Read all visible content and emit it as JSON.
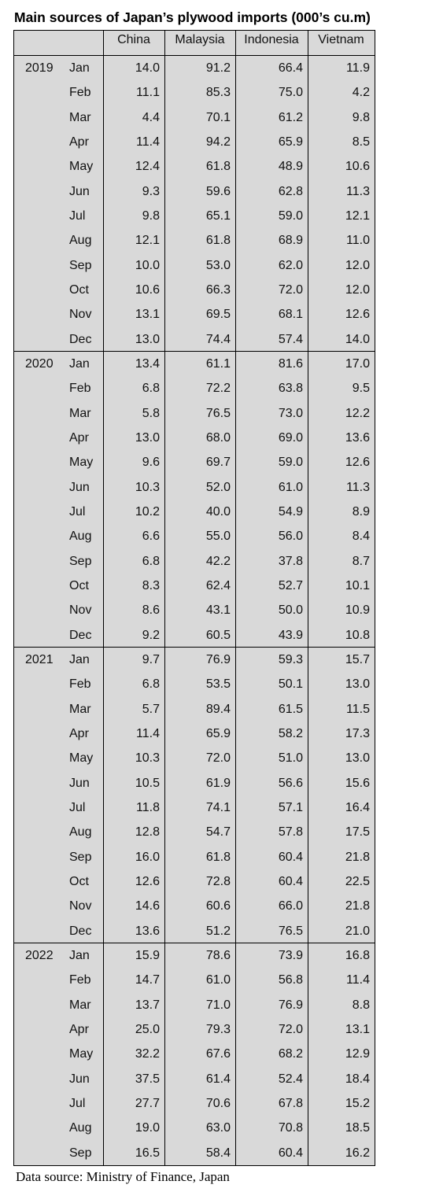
{
  "title": "Main sources of Japan’s plywood imports (000’s cu.m)",
  "table": {
    "columns": [
      "China",
      "Malaysia",
      "Indonesia",
      "Vietnam"
    ],
    "groups": [
      {
        "year": "2019",
        "rows": [
          {
            "month": "Jan",
            "values": [
              "14.0",
              "91.2",
              "66.4",
              "11.9"
            ]
          },
          {
            "month": "Feb",
            "values": [
              "11.1",
              "85.3",
              "75.0",
              "4.2"
            ]
          },
          {
            "month": "Mar",
            "values": [
              "4.4",
              "70.1",
              "61.2",
              "9.8"
            ]
          },
          {
            "month": "Apr",
            "values": [
              "11.4",
              "94.2",
              "65.9",
              "8.5"
            ]
          },
          {
            "month": "May",
            "values": [
              "12.4",
              "61.8",
              "48.9",
              "10.6"
            ]
          },
          {
            "month": "Jun",
            "values": [
              "9.3",
              "59.6",
              "62.8",
              "11.3"
            ]
          },
          {
            "month": "Jul",
            "values": [
              "9.8",
              "65.1",
              "59.0",
              "12.1"
            ]
          },
          {
            "month": "Aug",
            "values": [
              "12.1",
              "61.8",
              "68.9",
              "11.0"
            ]
          },
          {
            "month": "Sep",
            "values": [
              "10.0",
              "53.0",
              "62.0",
              "12.0"
            ]
          },
          {
            "month": "Oct",
            "values": [
              "10.6",
              "66.3",
              "72.0",
              "12.0"
            ]
          },
          {
            "month": "Nov",
            "values": [
              "13.1",
              "69.5",
              "68.1",
              "12.6"
            ]
          },
          {
            "month": "Dec",
            "values": [
              "13.0",
              "74.4",
              "57.4",
              "14.0"
            ]
          }
        ]
      },
      {
        "year": "2020",
        "rows": [
          {
            "month": "Jan",
            "values": [
              "13.4",
              "61.1",
              "81.6",
              "17.0"
            ]
          },
          {
            "month": "Feb",
            "values": [
              "6.8",
              "72.2",
              "63.8",
              "9.5"
            ]
          },
          {
            "month": "Mar",
            "values": [
              "5.8",
              "76.5",
              "73.0",
              "12.2"
            ]
          },
          {
            "month": "Apr",
            "values": [
              "13.0",
              "68.0",
              "69.0",
              "13.6"
            ]
          },
          {
            "month": "May",
            "values": [
              "9.6",
              "69.7",
              "59.0",
              "12.6"
            ]
          },
          {
            "month": "Jun",
            "values": [
              "10.3",
              "52.0",
              "61.0",
              "11.3"
            ]
          },
          {
            "month": "Jul",
            "values": [
              "10.2",
              "40.0",
              "54.9",
              "8.9"
            ]
          },
          {
            "month": "Aug",
            "values": [
              "6.6",
              "55.0",
              "56.0",
              "8.4"
            ]
          },
          {
            "month": "Sep",
            "values": [
              "6.8",
              "42.2",
              "37.8",
              "8.7"
            ]
          },
          {
            "month": "Oct",
            "values": [
              "8.3",
              "62.4",
              "52.7",
              "10.1"
            ]
          },
          {
            "month": "Nov",
            "values": [
              "8.6",
              "43.1",
              "50.0",
              "10.9"
            ]
          },
          {
            "month": "Dec",
            "values": [
              "9.2",
              "60.5",
              "43.9",
              "10.8"
            ]
          }
        ]
      },
      {
        "year": "2021",
        "rows": [
          {
            "month": "Jan",
            "values": [
              "9.7",
              "76.9",
              "59.3",
              "15.7"
            ]
          },
          {
            "month": "Feb",
            "values": [
              "6.8",
              "53.5",
              "50.1",
              "13.0"
            ]
          },
          {
            "month": "Mar",
            "values": [
              "5.7",
              "89.4",
              "61.5",
              "11.5"
            ]
          },
          {
            "month": "Apr",
            "values": [
              "11.4",
              "65.9",
              "58.2",
              "17.3"
            ]
          },
          {
            "month": "May",
            "values": [
              "10.3",
              "72.0",
              "51.0",
              "13.0"
            ]
          },
          {
            "month": "Jun",
            "values": [
              "10.5",
              "61.9",
              "56.6",
              "15.6"
            ]
          },
          {
            "month": "Jul",
            "values": [
              "11.8",
              "74.1",
              "57.1",
              "16.4"
            ]
          },
          {
            "month": "Aug",
            "values": [
              "12.8",
              "54.7",
              "57.8",
              "17.5"
            ]
          },
          {
            "month": "Sep",
            "values": [
              "16.0",
              "61.8",
              "60.4",
              "21.8"
            ]
          },
          {
            "month": "Oct",
            "values": [
              "12.6",
              "72.8",
              "60.4",
              "22.5"
            ]
          },
          {
            "month": "Nov",
            "values": [
              "14.6",
              "60.6",
              "66.0",
              "21.8"
            ]
          },
          {
            "month": "Dec",
            "values": [
              "13.6",
              "51.2",
              "76.5",
              "21.0"
            ]
          }
        ]
      },
      {
        "year": "2022",
        "rows": [
          {
            "month": "Jan",
            "values": [
              "15.9",
              "78.6",
              "73.9",
              "16.8"
            ]
          },
          {
            "month": "Feb",
            "values": [
              "14.7",
              "61.0",
              "56.8",
              "11.4"
            ]
          },
          {
            "month": "Mar",
            "values": [
              "13.7",
              "71.0",
              "76.9",
              "8.8"
            ]
          },
          {
            "month": "Apr",
            "values": [
              "25.0",
              "79.3",
              "72.0",
              "13.1"
            ]
          },
          {
            "month": "May",
            "values": [
              "32.2",
              "67.6",
              "68.2",
              "12.9"
            ]
          },
          {
            "month": "Jun",
            "values": [
              "37.5",
              "61.4",
              "52.4",
              "18.4"
            ]
          },
          {
            "month": "Jul",
            "values": [
              "27.7",
              "70.6",
              "67.8",
              "15.2"
            ]
          },
          {
            "month": "Aug",
            "values": [
              "19.0",
              "63.0",
              "70.8",
              "18.5"
            ]
          },
          {
            "month": "Sep",
            "values": [
              "16.5",
              "58.4",
              "60.4",
              "16.2"
            ]
          }
        ]
      }
    ]
  },
  "source": "Data source: Ministry of Finance, Japan"
}
